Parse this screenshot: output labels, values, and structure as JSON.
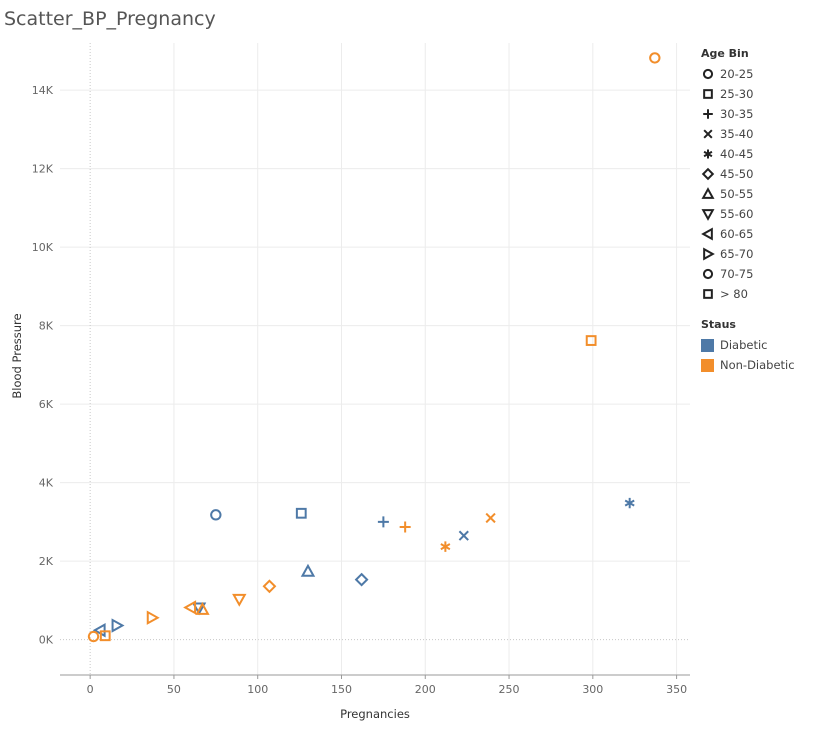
{
  "chart_data": {
    "type": "scatter",
    "title": "Scatter_BP_Pregnancy",
    "xlabel": "Pregnancies",
    "ylabel": "Blood Pressure",
    "xlim": [
      -18,
      358
    ],
    "ylim": [
      -900,
      15200
    ],
    "x_ticks": [
      0,
      50,
      100,
      150,
      200,
      250,
      300,
      350
    ],
    "y_ticks": [
      0,
      2000,
      4000,
      6000,
      8000,
      10000,
      12000,
      14000
    ],
    "y_tick_labels": [
      "0K",
      "2K",
      "4K",
      "6K",
      "8K",
      "10K",
      "12K",
      "14K"
    ],
    "grid": true,
    "colors": {
      "Diabetic": "#4e79a7",
      "Non-Diabetic": "#f28e2b"
    },
    "shape_legend": {
      "title": "Age Bin",
      "items": [
        {
          "label": "20-25",
          "shape": "circle"
        },
        {
          "label": "25-30",
          "shape": "square"
        },
        {
          "label": "30-35",
          "shape": "plus"
        },
        {
          "label": "35-40",
          "shape": "cross"
        },
        {
          "label": "40-45",
          "shape": "asterisk"
        },
        {
          "label": "45-50",
          "shape": "diamond"
        },
        {
          "label": "50-55",
          "shape": "triangle-up"
        },
        {
          "label": "55-60",
          "shape": "triangle-down"
        },
        {
          "label": "60-65",
          "shape": "triangle-left"
        },
        {
          "label": "65-70",
          "shape": "triangle-right"
        },
        {
          "label": "70-75",
          "shape": "circle"
        },
        {
          "label": "> 80",
          "shape": "square"
        }
      ]
    },
    "color_legend": {
      "title": "Staus",
      "items": [
        {
          "label": "Diabetic",
          "color": "#4e79a7"
        },
        {
          "label": "Non-Diabetic",
          "color": "#f28e2b"
        }
      ]
    },
    "points": [
      {
        "x": 75,
        "y": 3180,
        "shape": "circle",
        "status": "Diabetic"
      },
      {
        "x": 126,
        "y": 3220,
        "shape": "square",
        "status": "Diabetic"
      },
      {
        "x": 175,
        "y": 3000,
        "shape": "plus",
        "status": "Diabetic"
      },
      {
        "x": 223,
        "y": 2650,
        "shape": "cross",
        "status": "Diabetic"
      },
      {
        "x": 322,
        "y": 3480,
        "shape": "asterisk",
        "status": "Diabetic"
      },
      {
        "x": 162,
        "y": 1530,
        "shape": "diamond",
        "status": "Diabetic"
      },
      {
        "x": 130,
        "y": 1740,
        "shape": "triangle-up",
        "status": "Diabetic"
      },
      {
        "x": 65,
        "y": 810,
        "shape": "triangle-down",
        "status": "Diabetic"
      },
      {
        "x": 6,
        "y": 240,
        "shape": "triangle-left",
        "status": "Diabetic"
      },
      {
        "x": 16,
        "y": 360,
        "shape": "triangle-right",
        "status": "Diabetic"
      },
      {
        "x": 337,
        "y": 14820,
        "shape": "circle",
        "status": "Non-Diabetic"
      },
      {
        "x": 299,
        "y": 7620,
        "shape": "square",
        "status": "Non-Diabetic"
      },
      {
        "x": 188,
        "y": 2870,
        "shape": "plus",
        "status": "Non-Diabetic"
      },
      {
        "x": 239,
        "y": 3100,
        "shape": "cross",
        "status": "Non-Diabetic"
      },
      {
        "x": 212,
        "y": 2370,
        "shape": "asterisk",
        "status": "Non-Diabetic"
      },
      {
        "x": 107,
        "y": 1360,
        "shape": "diamond",
        "status": "Non-Diabetic"
      },
      {
        "x": 67,
        "y": 770,
        "shape": "triangle-up",
        "status": "Non-Diabetic"
      },
      {
        "x": 89,
        "y": 1030,
        "shape": "triangle-down",
        "status": "Non-Diabetic"
      },
      {
        "x": 60,
        "y": 820,
        "shape": "triangle-left",
        "status": "Non-Diabetic"
      },
      {
        "x": 37,
        "y": 560,
        "shape": "triangle-right",
        "status": "Non-Diabetic"
      },
      {
        "x": 2,
        "y": 80,
        "shape": "circle",
        "status": "Non-Diabetic"
      },
      {
        "x": 9,
        "y": 100,
        "shape": "square",
        "status": "Non-Diabetic"
      }
    ]
  }
}
